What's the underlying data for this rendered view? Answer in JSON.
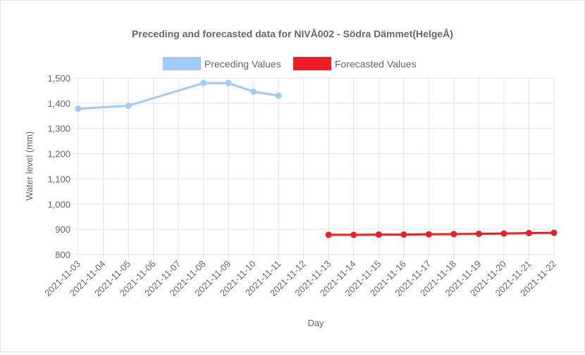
{
  "chart_data": {
    "type": "line",
    "title": "Preceding and forecasted data for NIVÅ002 - Södra Dämmet(HelgeÅ)",
    "xlabel": "Day",
    "ylabel": "Water level (mm)",
    "categories": [
      "2021-11-03",
      "2021-11-04",
      "2021-11-05",
      "2021-11-06",
      "2021-11-07",
      "2021-11-08",
      "2021-11-09",
      "2021-11-10",
      "2021-11-11",
      "2021-11-12",
      "2021-11-13",
      "2021-11-14",
      "2021-11-15",
      "2021-11-16",
      "2021-11-17",
      "2021-11-18",
      "2021-11-19",
      "2021-11-20",
      "2021-11-21",
      "2021-11-22"
    ],
    "ylim": [
      800,
      1500
    ],
    "yticks": [
      800,
      900,
      1000,
      1100,
      1200,
      1300,
      1400,
      1500
    ],
    "ytick_labels": [
      "800",
      "900",
      "1,000",
      "1,100",
      "1,200",
      "1,300",
      "1,400",
      "1,500"
    ],
    "grid": true,
    "legend_position": "top",
    "series": [
      {
        "name": "Preceding Values",
        "color": "#9ecbf7",
        "values": [
          1378,
          null,
          1390,
          null,
          null,
          1480,
          1480,
          1446,
          1430,
          null,
          null,
          null,
          null,
          null,
          null,
          null,
          null,
          null,
          null,
          null
        ]
      },
      {
        "name": "Forecasted Values",
        "color": "#ee1c24",
        "values": [
          null,
          null,
          null,
          null,
          null,
          null,
          null,
          null,
          null,
          null,
          878,
          878,
          879,
          879,
          880,
          881,
          882,
          883,
          885,
          886
        ]
      }
    ]
  }
}
